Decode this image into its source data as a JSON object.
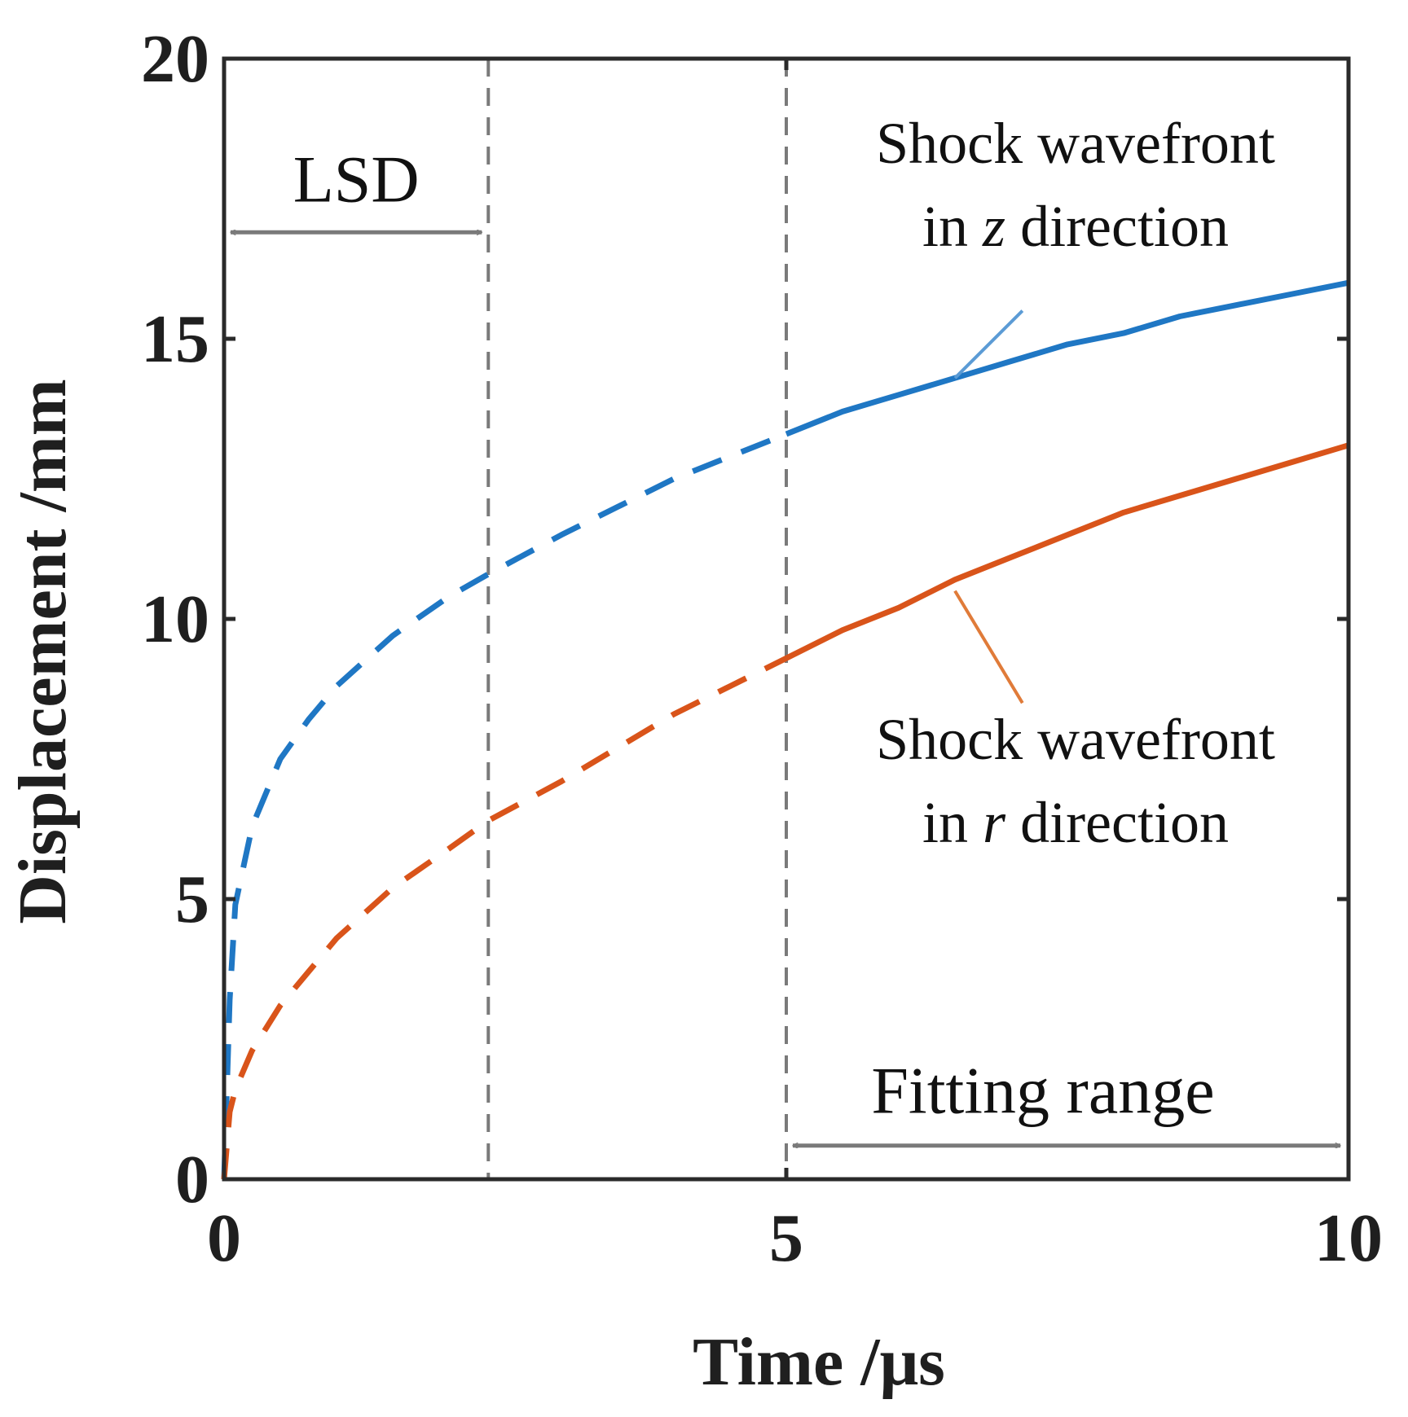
{
  "chart_data": {
    "type": "line",
    "title": "",
    "xlabel": "Time /μs",
    "ylabel": "Displacement /mm",
    "xlim": [
      0,
      10
    ],
    "ylim": [
      0,
      20
    ],
    "xticks": [
      0,
      5,
      10
    ],
    "yticks": [
      0,
      5,
      10,
      15,
      20
    ],
    "x_tick_labels": [
      "0",
      "5",
      "10"
    ],
    "y_tick_labels": [
      "0",
      "5",
      "10",
      "15",
      "20"
    ],
    "grid": false,
    "series": [
      {
        "name": "Shock wavefront in z direction",
        "color": "#1f77c4",
        "x": [
          0,
          0.05,
          0.1,
          0.25,
          0.5,
          0.75,
          1,
          1.5,
          2,
          2.35,
          3,
          3.5,
          4,
          4.5,
          5,
          5.5,
          6,
          6.5,
          7,
          7.5,
          8,
          8.5,
          9,
          9.5,
          10
        ],
        "y": [
          0,
          3.2,
          4.9,
          6.3,
          7.5,
          8.2,
          8.8,
          9.7,
          10.4,
          10.8,
          11.5,
          12.0,
          12.5,
          12.9,
          13.3,
          13.7,
          14.0,
          14.3,
          14.6,
          14.9,
          15.1,
          15.4,
          15.6,
          15.8,
          16.0
        ],
        "dashed_until_x": 5
      },
      {
        "name": "Shock wavefront in r direction",
        "color": "#d9541a",
        "x": [
          0,
          0.05,
          0.1,
          0.25,
          0.5,
          0.75,
          1,
          1.5,
          2,
          2.35,
          3,
          3.5,
          4,
          4.5,
          5,
          5.5,
          6,
          6.5,
          7,
          7.5,
          8,
          8.5,
          9,
          9.5,
          10
        ],
        "y": [
          0,
          1.2,
          1.6,
          2.3,
          3.1,
          3.7,
          4.3,
          5.2,
          5.9,
          6.4,
          7.1,
          7.7,
          8.3,
          8.8,
          9.3,
          9.8,
          10.2,
          10.7,
          11.1,
          11.5,
          11.9,
          12.2,
          12.5,
          12.8,
          13.1
        ],
        "dashed_until_x": 5
      }
    ],
    "reference_lines": [
      {
        "x": 2.35,
        "style": "dashed",
        "color": "#7a7a7a"
      },
      {
        "x": 5,
        "style": "dashed",
        "color": "#7a7a7a"
      }
    ],
    "ranges": [
      {
        "label": "LSD",
        "from": 0,
        "to": 2.35,
        "y": 16.9
      },
      {
        "label": "Fitting range",
        "from": 5,
        "to": 10,
        "y": 0.6
      }
    ],
    "annotations": [
      {
        "line1": "Shock wavefront",
        "line2_prefix": "in ",
        "line2_var": "z",
        "line2_suffix": " direction",
        "series": 0,
        "pointer_from": [
          7.1,
          15.5
        ],
        "pointer_to": [
          6.5,
          14.3
        ]
      },
      {
        "line1": "Shock wavefront",
        "line2_prefix": "in ",
        "line2_var": "r",
        "line2_suffix": " direction",
        "series": 1,
        "pointer_from": [
          7.1,
          8.5
        ],
        "pointer_to": [
          6.5,
          10.5
        ]
      }
    ]
  }
}
